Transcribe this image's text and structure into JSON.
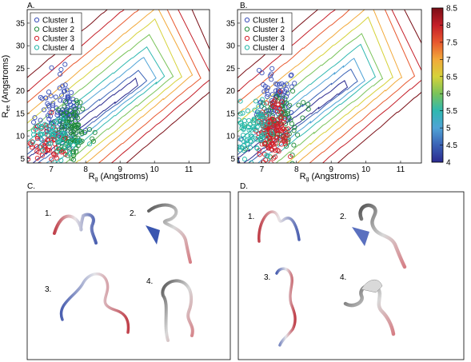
{
  "panel_labels": {
    "a": "A.",
    "b": "B.",
    "c": "C.",
    "d": "D."
  },
  "colorbar": {
    "ticks": [
      "8.5",
      "8",
      "7.5",
      "7",
      "6.5",
      "6",
      "5.5",
      "5",
      "4.5",
      "4"
    ],
    "range": [
      4,
      8.5
    ],
    "colors": [
      "#2b2a8f",
      "#3a62b6",
      "#4fa3d6",
      "#2fb8b0",
      "#7ac35a",
      "#d6d23a",
      "#f2a93a",
      "#e8582e",
      "#c41e28",
      "#7a0e16"
    ]
  },
  "chart_data": [
    {
      "type": "scatter",
      "xlabel": "Rg (Angstroms)",
      "ylabel": "Ree (Angstroms)",
      "xticks": [
        "7",
        "8",
        "9",
        "10",
        "11"
      ],
      "yticks": [
        "5",
        "10",
        "15",
        "20",
        "25",
        "30",
        "35"
      ],
      "xlim": [
        6.3,
        11.6
      ],
      "ylim": [
        4,
        38
      ],
      "legend_placement": "top-left",
      "background": "contour",
      "series": [
        {
          "name": "Cluster 1",
          "color": "#3a4fb8",
          "center": [
            7.3,
            15.5
          ],
          "spread": [
            0.3,
            3.2
          ],
          "count": 110
        },
        {
          "name": "Cluster 2",
          "color": "#1e8a3a",
          "center": [
            7.6,
            10.5
          ],
          "spread": [
            0.25,
            3.0
          ],
          "count": 110
        },
        {
          "name": "Cluster 3",
          "color": "#d4202a",
          "center": [
            6.9,
            8.5
          ],
          "spread": [
            0.3,
            3.0
          ],
          "count": 60
        },
        {
          "name": "Cluster 4",
          "color": "#23b7a8",
          "center": [
            7.1,
            9.5
          ],
          "spread": [
            0.3,
            2.2
          ],
          "count": 60
        }
      ]
    },
    {
      "type": "scatter",
      "xlabel": "Rg (Angstroms)",
      "ylabel": "",
      "xticks": [
        "7",
        "8",
        "9",
        "10",
        "11"
      ],
      "yticks": [
        "5",
        "10",
        "15",
        "20",
        "25",
        "30",
        "35"
      ],
      "xlim": [
        6.3,
        11.6
      ],
      "ylim": [
        4,
        38
      ],
      "legend_placement": "top-left",
      "background": "contour",
      "series": [
        {
          "name": "Cluster 1",
          "color": "#3a4fb8",
          "center": [
            7.4,
            18
          ],
          "spread": [
            0.3,
            3.5
          ],
          "count": 80
        },
        {
          "name": "Cluster 2",
          "color": "#1e8a3a",
          "center": [
            7.5,
            13
          ],
          "spread": [
            0.3,
            3.0
          ],
          "count": 80
        },
        {
          "name": "Cluster 3",
          "color": "#d4202a",
          "center": [
            7.35,
            11.5
          ],
          "spread": [
            0.25,
            3.2
          ],
          "count": 130
        },
        {
          "name": "Cluster 4",
          "color": "#23b7a8",
          "center": [
            6.7,
            11
          ],
          "spread": [
            0.3,
            2.8
          ],
          "count": 100
        }
      ]
    }
  ],
  "structures": {
    "c": [
      "1.",
      "2.",
      "3.",
      "4."
    ],
    "d": [
      "1.",
      "2.",
      "3.",
      "4."
    ]
  }
}
